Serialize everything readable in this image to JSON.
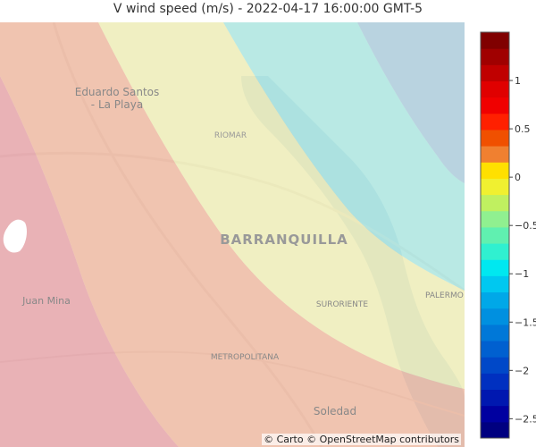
{
  "title": "V wind speed (m/s) - 2022-04-17 16:00:00 GMT-5",
  "attribution": "© Carto © OpenStreetMap contributors",
  "places": {
    "eduardo_santos_1": "Eduardo Santos",
    "eduardo_santos_2": "- La Playa",
    "riomar": "RIOMAR",
    "barranquilla": "BARRANQUILLA",
    "suroriente": "SURORIENTE",
    "palermo": "PALERMO",
    "juan_mina": "Juan Mina",
    "metropolitana": "METROPOLITANA",
    "soledad": "Soledad"
  },
  "colorbar": {
    "min": -2.7,
    "max": 1.5,
    "ticks": [
      {
        "value": 1,
        "label": "1"
      },
      {
        "value": 0.5,
        "label": "0.5"
      },
      {
        "value": 0,
        "label": "0"
      },
      {
        "value": -0.5,
        "label": "−0.5"
      },
      {
        "value": -1,
        "label": "−1"
      },
      {
        "value": -1.5,
        "label": "−1.5"
      },
      {
        "value": -2,
        "label": "−2"
      },
      {
        "value": -2.5,
        "label": "−2.5"
      }
    ],
    "colors_bottom_to_top": [
      "#000080",
      "#0000a0",
      "#0018b0",
      "#0030c0",
      "#0048c8",
      "#0060d0",
      "#0078d8",
      "#0090e0",
      "#00a8e8",
      "#00c8f0",
      "#00e8f0",
      "#30f0d0",
      "#60f0b0",
      "#90f090",
      "#c0f060",
      "#f0f030",
      "#ffe000",
      "#f08030",
      "#f05000",
      "#ff2000",
      "#f00000",
      "#e00000",
      "#c00000",
      "#a00000",
      "#800000"
    ]
  },
  "bands": {
    "red": "#e8a0a8",
    "orange": "#f2b8a0",
    "yellow": "#f2f2b8",
    "cyan": "#a8eae6",
    "blue": "#a8cce0"
  }
}
